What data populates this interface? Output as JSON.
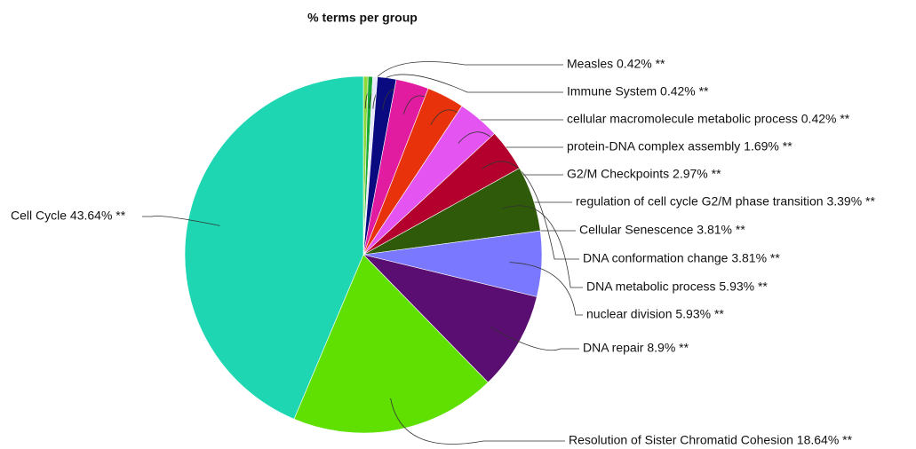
{
  "chart_data": {
    "type": "pie",
    "title": "% terms per group",
    "values": [
      0.42,
      0.42,
      0.42,
      1.69,
      2.97,
      3.39,
      3.81,
      3.81,
      5.93,
      5.93,
      8.9,
      18.64,
      43.64
    ],
    "value_labels": [
      "Measles 0.42% **",
      "Immune System 0.42% **",
      "cellular macromolecule metabolic process 0.42% **",
      "protein-DNA complex assembly 1.69% **",
      "G2/M Checkpoints 2.97% **",
      "regulation of cell cycle G2/M phase transition 3.39% **",
      "Cellular Senescence 3.81% **",
      "DNA conformation change 3.81% **",
      "DNA metabolic process 5.93% **",
      "nuclear division 5.93% **",
      "DNA repair 8.9% **",
      "Resolution of Sister Chromatid Cohesion 18.64% **",
      "Cell Cycle 43.64% **"
    ],
    "colors": [
      "#8fd83a",
      "#1aa834",
      "#e8e8ff",
      "#0a0a80",
      "#e21ca0",
      "#e8320c",
      "#e454f0",
      "#b4002c",
      "#2e5a0a",
      "#7a78ff",
      "#5a0e72",
      "#60e000",
      "#1ed6b2"
    ]
  }
}
